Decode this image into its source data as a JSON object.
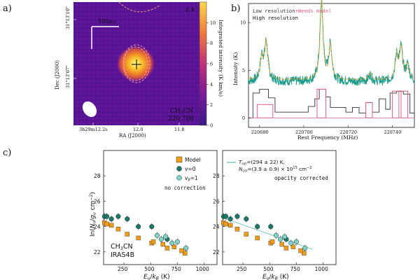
{
  "panels": {
    "a": {
      "letter": "a)",
      "scalebar_label": "500au",
      "top_value": "0.4",
      "molecule": "CH3CN",
      "frequency": "220.708",
      "colorbar_label": "Integrated intensity (K km/s)",
      "colorbar_ticks": [
        "10",
        "8",
        "6",
        "4",
        "2",
        "0"
      ],
      "ra_ticks": [
        "3h29m12.2s",
        "12.0",
        "11.8"
      ],
      "ra_label": "RA (J2000)",
      "dec_ticks": [
        "31°13'10\"",
        "31°13'07\""
      ],
      "dec_label": "Dec (J2000)"
    },
    "b": {
      "letter": "b)",
      "legend_low": "Low resolution",
      "legend_weeds": "+Weeds model",
      "legend_high": "High resolution",
      "x_ticks": [
        "220680",
        "220700",
        "220720",
        "220740"
      ],
      "y_ticks": [
        "0",
        "5",
        "10"
      ],
      "xlabel": "Rest Frequency (MHz)",
      "ylabel": "Intensity (K)"
    },
    "c": {
      "letter": "c)",
      "left_note": "no correction",
      "right_note": "opacity corrected",
      "id_line1": "CH3CN",
      "id_line2": "IRAS4B",
      "fit_line1": "Trot=(294 ± 22) K,",
      "fit_line2": "Ncol=(3.9 ± 0.9) × 10^15 cm^-2",
      "legend_model": "Model",
      "legend_v0": "v=0",
      "legend_v8": "v8=1",
      "ylabel": "ln(Nu/gu cm^-2)",
      "xlabel": "Eu/kB (K)",
      "x_ticks": [
        "250",
        "500",
        "750",
        "1000"
      ],
      "y_ticks": [
        "22",
        "24",
        "26",
        "28"
      ]
    }
  },
  "colors": {
    "model": "#f39c12",
    "v0": "#1a7a6a",
    "v8": "#7fd3c8",
    "fit": "#5bbfb5",
    "weeds": "#f5a623",
    "high": "#1a9a8a",
    "low": "#333333",
    "pink": "#e0607e"
  },
  "chart_data": [
    {
      "type": "line",
      "panel": "b",
      "title": "",
      "xlabel": "Rest Frequency (MHz)",
      "ylabel": "Intensity (K)",
      "xlim": [
        220675,
        220750
      ],
      "ylim": [
        -1,
        12
      ],
      "baseline": 3.8,
      "lines": [
        {
          "center": 220681,
          "height": 6.2,
          "width": 0.9
        },
        {
          "center": 220683,
          "height": 7.8,
          "width": 0.9
        },
        {
          "center": 220698,
          "height": 1.0,
          "width": 1.2
        },
        {
          "center": 220708,
          "height": 12.0,
          "width": 0.9
        },
        {
          "center": 220712,
          "height": 7.5,
          "width": 0.9
        },
        {
          "center": 220730,
          "height": 4.5,
          "width": 0.9
        },
        {
          "center": 220742,
          "height": 6.3,
          "width": 0.9
        },
        {
          "center": 220744,
          "height": 7.1,
          "width": 0.9
        },
        {
          "center": 220747,
          "height": 5.4,
          "width": 0.9
        }
      ],
      "low_res_steps": [
        {
          "x": 220675,
          "y": 0
        },
        {
          "x": 220677,
          "y": 2.6
        },
        {
          "x": 220680,
          "y": 3.0
        },
        {
          "x": 220684,
          "y": 2.1
        },
        {
          "x": 220687,
          "y": 0.6
        },
        {
          "x": 220700,
          "y": 0.6
        },
        {
          "x": 220702,
          "y": 1.2
        },
        {
          "x": 220705,
          "y": 2.0
        },
        {
          "x": 220707,
          "y": 3.0
        },
        {
          "x": 220710,
          "y": 2.2
        },
        {
          "x": 220712,
          "y": 1.1
        },
        {
          "x": 220719,
          "y": 0.6
        },
        {
          "x": 220722,
          "y": 1.1
        },
        {
          "x": 220725,
          "y": 0.5
        },
        {
          "x": 220728,
          "y": 1.6
        },
        {
          "x": 220731,
          "y": 0.6
        },
        {
          "x": 220734,
          "y": 2.0
        },
        {
          "x": 220737,
          "y": 0.9
        },
        {
          "x": 220739,
          "y": 2.6
        },
        {
          "x": 220742,
          "y": 2.8
        },
        {
          "x": 220745,
          "y": 2.5
        },
        {
          "x": 220748,
          "y": 0.5
        },
        {
          "x": 220750,
          "y": 0
        }
      ],
      "model_bins": [
        {
          "x0": 220679,
          "x1": 220686,
          "y": 1.4
        },
        {
          "x0": 220706,
          "x1": 220710,
          "y": 3.0
        },
        {
          "x0": 220728,
          "x1": 220731,
          "y": 1.6
        },
        {
          "x0": 220740,
          "x1": 220743,
          "y": 2.8
        },
        {
          "x0": 220744,
          "x1": 220747,
          "y": 2.8
        }
      ]
    },
    {
      "type": "scatter",
      "panel": "c",
      "subplot": "left",
      "xlabel": "Eu/kB (K)",
      "ylabel": "ln(Nu/gu cm^-2)",
      "xlim": [
        60,
        1120
      ],
      "ylim": [
        21.0,
        30.0
      ],
      "series": [
        {
          "name": "Model",
          "marker": "square",
          "points": [
            [
              69,
              24.3
            ],
            [
              90,
              24.2
            ],
            [
              133,
              24.1
            ],
            [
              197,
              23.8
            ],
            [
              281,
              23.4
            ],
            [
              385,
              23.1
            ],
            [
              510,
              22.7
            ],
            [
              655,
              22.3
            ],
            [
              821,
              21.9
            ],
            [
              525,
              22.8
            ],
            [
              615,
              22.6
            ],
            [
              720,
              22.4
            ],
            [
              790,
              22.1
            ]
          ]
        },
        {
          "name": "v=0",
          "marker": "circle-errorbar",
          "points": [
            [
              69,
              24.8
            ],
            [
              90,
              24.8
            ],
            [
              133,
              24.6
            ],
            [
              197,
              24.8
            ],
            [
              281,
              24.6
            ],
            [
              385,
              24.0
            ],
            [
              510,
              24.0
            ],
            [
              655,
              23.0
            ]
          ]
        },
        {
          "name": "v8=1",
          "marker": "circle-errorbar",
          "points": [
            [
              560,
              23.3
            ],
            [
              600,
              23.0
            ],
            [
              640,
              23.2
            ],
            [
              700,
              22.7
            ],
            [
              750,
              22.8
            ],
            [
              830,
              22.3
            ]
          ]
        }
      ]
    },
    {
      "type": "scatter",
      "panel": "c",
      "subplot": "right",
      "xlabel": "Eu/kB (K)",
      "ylabel": "ln(Nu/gu cm^-2)",
      "xlim": [
        60,
        1120
      ],
      "ylim": [
        21.0,
        30.0
      ],
      "fit_line": [
        [
          60,
          24.7
        ],
        [
          900,
          22.2
        ]
      ],
      "series": [
        {
          "name": "Model",
          "marker": "square",
          "points": [
            [
              69,
              24.3
            ],
            [
              90,
              24.2
            ],
            [
              133,
              24.1
            ],
            [
              197,
              23.8
            ],
            [
              281,
              23.4
            ],
            [
              385,
              23.1
            ],
            [
              510,
              22.7
            ],
            [
              655,
              22.3
            ],
            [
              821,
              21.9
            ],
            [
              525,
              22.8
            ],
            [
              615,
              22.6
            ],
            [
              720,
              22.4
            ],
            [
              790,
              22.1
            ]
          ]
        },
        {
          "name": "v=0",
          "marker": "circle-errorbar",
          "points": [
            [
              69,
              24.8
            ],
            [
              90,
              24.8
            ],
            [
              133,
              24.6
            ],
            [
              197,
              24.8
            ],
            [
              281,
              24.6
            ],
            [
              385,
              24.0
            ],
            [
              510,
              24.0
            ],
            [
              655,
              23.0
            ]
          ]
        },
        {
          "name": "v8=1",
          "marker": "circle-errorbar",
          "points": [
            [
              560,
              23.3
            ],
            [
              600,
              23.0
            ],
            [
              640,
              23.2
            ],
            [
              700,
              22.7
            ],
            [
              750,
              22.8
            ],
            [
              830,
              22.3
            ]
          ]
        }
      ]
    }
  ]
}
